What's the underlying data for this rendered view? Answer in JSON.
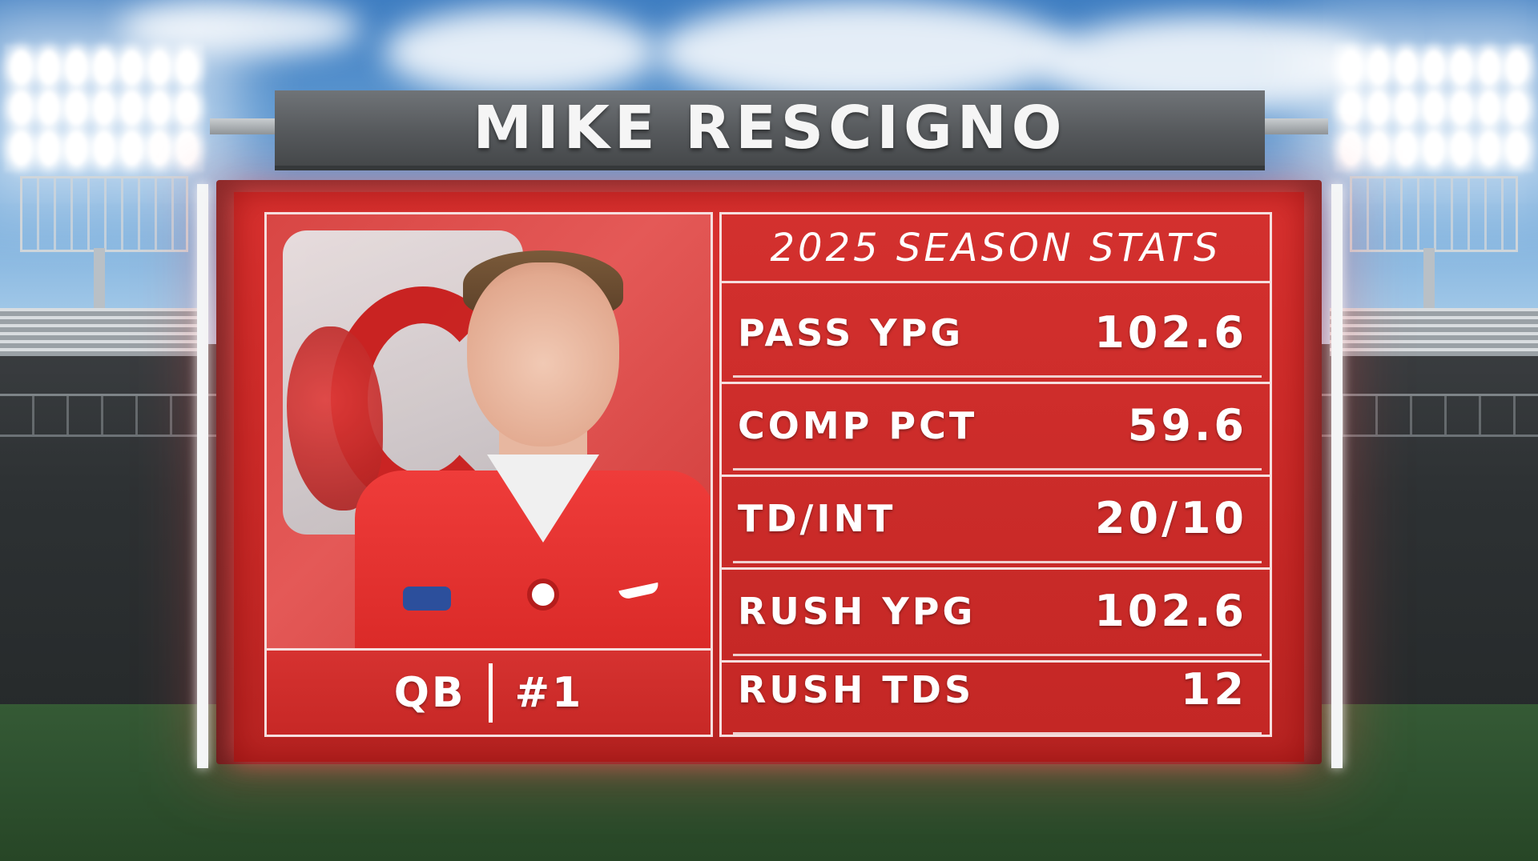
{
  "player": {
    "name": "MIKE RESCIGNO",
    "position": "QB",
    "number": "#1"
  },
  "stats": {
    "title": "2025 SEASON STATS",
    "rows": [
      {
        "label": "PASS YPG",
        "value": "102.6"
      },
      {
        "label": "COMP PCT",
        "value": "59.6"
      },
      {
        "label": "TD/INT",
        "value": "20/10"
      },
      {
        "label": "RUSH YPG",
        "value": "102.6"
      },
      {
        "label": "RUSH TDS",
        "value": "12"
      }
    ]
  },
  "colors": {
    "board_red": "#d3302e",
    "frame_gray": "#56595c",
    "text": "#ffffff"
  }
}
